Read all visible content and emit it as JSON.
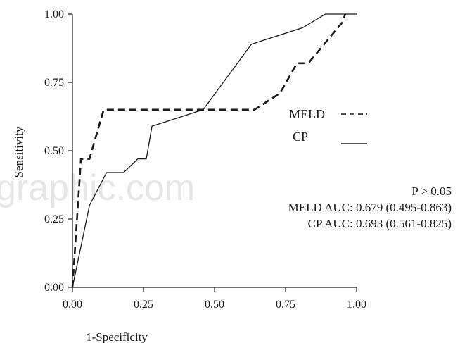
{
  "watermark": "graphic.com",
  "chart_data": {
    "type": "line",
    "xlabel": "1-Specificity",
    "ylabel": "Sensitivity",
    "xlim": [
      0,
      1
    ],
    "ylim": [
      0,
      1
    ],
    "x_ticks": [
      "0.00",
      "0.25",
      "0.50",
      "0.75",
      "1.00"
    ],
    "y_ticks": [
      "0.00",
      "0.25",
      "0.50",
      "0.75",
      "1.00"
    ],
    "grid": false,
    "legend": {
      "placement": "right",
      "entries": [
        {
          "label": "MELD",
          "style": "dashed"
        },
        {
          "label": "CP",
          "style": "solid"
        }
      ]
    },
    "annotations": [
      "P > 0.05",
      "MELD AUC: 0.679 (0.495-0.863)",
      "CP AUC: 0.693 (0.561-0.825)"
    ],
    "series": [
      {
        "name": "MELD",
        "style": "dashed",
        "points": [
          [
            0.0,
            0.0
          ],
          [
            0.03,
            0.47
          ],
          [
            0.06,
            0.47
          ],
          [
            0.11,
            0.65
          ],
          [
            0.64,
            0.65
          ],
          [
            0.73,
            0.71
          ],
          [
            0.79,
            0.82
          ],
          [
            0.83,
            0.82
          ],
          [
            0.95,
            0.97
          ],
          [
            0.96,
            1.0
          ]
        ]
      },
      {
        "name": "CP",
        "style": "solid",
        "points": [
          [
            0.0,
            0.0
          ],
          [
            0.06,
            0.3
          ],
          [
            0.12,
            0.42
          ],
          [
            0.18,
            0.42
          ],
          [
            0.23,
            0.47
          ],
          [
            0.26,
            0.47
          ],
          [
            0.28,
            0.59
          ],
          [
            0.46,
            0.65
          ],
          [
            0.63,
            0.89
          ],
          [
            0.81,
            0.95
          ],
          [
            0.89,
            1.0
          ],
          [
            1.0,
            1.0
          ]
        ]
      }
    ],
    "colors": {
      "line": "#1a1a1a"
    }
  }
}
